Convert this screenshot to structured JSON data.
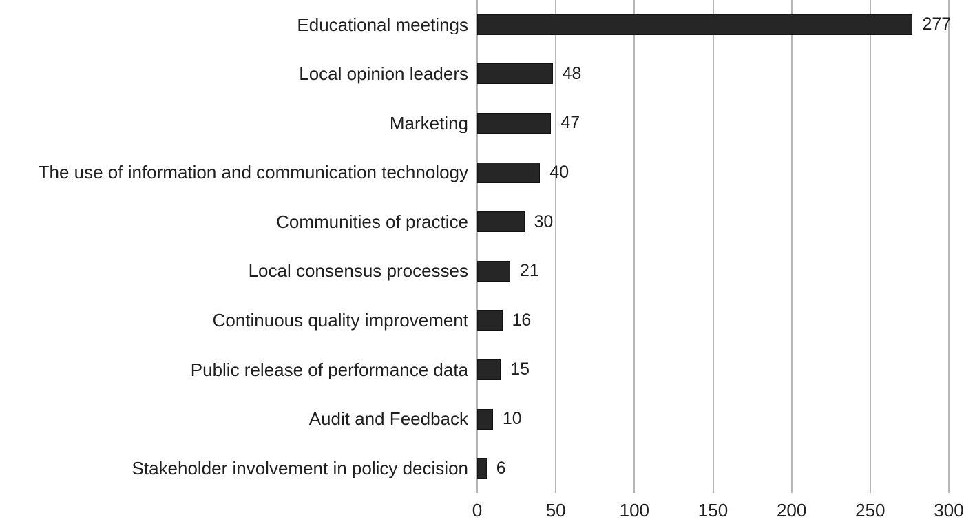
{
  "chart_data": {
    "type": "bar",
    "orientation": "horizontal",
    "title": "",
    "xlabel": "",
    "ylabel": "",
    "categories": [
      "Educational meetings",
      "Local opinion leaders",
      "Marketing",
      "The use of information and communication technology",
      "Communities of practice",
      "Local consensus processes",
      "Continuous quality improvement",
      "Public release of performance data",
      "Audit and Feedback",
      "Stakeholder involvement in policy decision"
    ],
    "values": [
      277,
      48,
      47,
      40,
      30,
      21,
      16,
      15,
      10,
      6
    ],
    "value_labels_shown": true,
    "xlim": [
      0,
      300
    ],
    "xticks": [
      0,
      50,
      100,
      150,
      200,
      250,
      300
    ],
    "grid": "vertical-only",
    "legend": "none",
    "colors": {
      "bar": "#262626",
      "bar_edge": "#121212",
      "gridline": "#b5b5b5",
      "text": "#1f1f1f",
      "background": "#ffffff"
    }
  }
}
